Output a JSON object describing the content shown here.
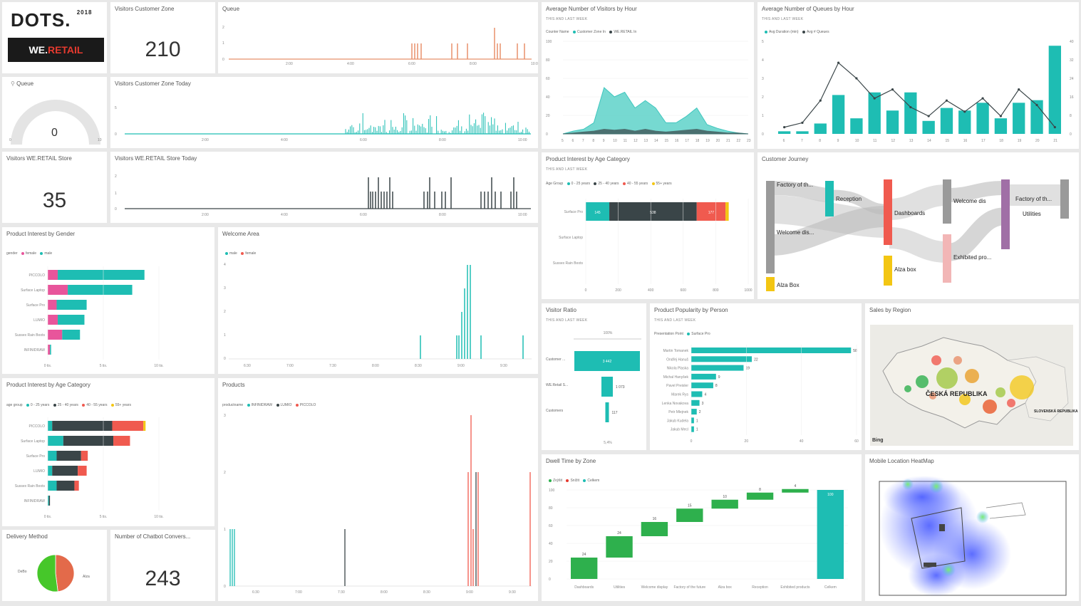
{
  "colors": {
    "teal": "#1ebdb3",
    "dark": "#3a4548",
    "red": "#f05a4f",
    "yellow": "#f3c613",
    "pink": "#e8559b",
    "orange": "#e8906a",
    "grey": "#9a9a9a",
    "purple": "#a06fa6",
    "lightpink": "#f2b6b6",
    "green": "#2eb04d"
  },
  "logo": {
    "brand": "DOTS.",
    "year": "2018",
    "store_we": "WE.",
    "store_retail": "RETAIL"
  },
  "tiles": {
    "visitors_customer_zone": {
      "title": "Visitors Customer Zone",
      "value": "210"
    },
    "queue_line": {
      "title": "Queue",
      "yticks": [
        "2",
        "1",
        "0"
      ],
      "xticks": [
        "2:00",
        "4:00",
        "6:00",
        "8:00",
        "10:00"
      ]
    },
    "avg_visitors_hour": {
      "title": "Average Number of Visitors by Hour",
      "subtitle": "THIS AND LAST WEEK",
      "legend_label": "Counter Name",
      "legend": [
        "Customer Zone In",
        "WE.RETAIL In"
      ]
    },
    "avg_queues_hour": {
      "title": "Average Number of Queues by Hour",
      "subtitle": "THIS AND LAST WEEK",
      "legend": [
        "Avg Duration (min)",
        "Avg # Queues"
      ]
    },
    "queue_gauge": {
      "title": "Queue",
      "value": "0",
      "min": "0",
      "max": "10"
    },
    "visitors_cz_today": {
      "title": "Visitors Customer Zone Today"
    },
    "visitors_wr_store": {
      "title": "Visitors WE.RETAIL Store",
      "value": "35"
    },
    "visitors_wr_today": {
      "title": "Visitors WE.RETAIL Store Today"
    },
    "interest_age_top": {
      "title": "Product Interest by Age Category",
      "subtitle": "THIS AND LAST WEEK",
      "legend_label": "Age Group",
      "legend": [
        "0 - 25 years",
        "25 - 40 years",
        "40 - 55 years",
        "55+ years"
      ]
    },
    "customer_journey": {
      "title": "Customer Journey"
    },
    "interest_gender": {
      "title": "Product Interest by Gender",
      "legend_label": "gender",
      "legend": [
        "female",
        "male"
      ]
    },
    "welcome_area": {
      "title": "Welcome Area",
      "legend": [
        "male",
        "female"
      ]
    },
    "visitor_ratio": {
      "title": "Visitor Ratio",
      "subtitle": "THIS AND LAST WEEK"
    },
    "popularity_person": {
      "title": "Product Popularity by Person",
      "subtitle": "THIS AND LAST WEEK",
      "legend_label": "Presentation Point",
      "legend": [
        "Surface Pro"
      ]
    },
    "sales_region": {
      "title": "Sales by Region",
      "country1": "ČESKÁ REPUBLIKA",
      "country2": "SLOVENSKÁ REPUBLIKA",
      "bing": "Bing"
    },
    "interest_age_bottom": {
      "title": "Product Interest by Age Category",
      "legend_label": "age group",
      "legend": [
        "0 - 25 years",
        "25 - 40 years",
        "40 - 55 years",
        "55+ years"
      ]
    },
    "products": {
      "title": "Products",
      "legend_label": "productname",
      "legend": [
        "INFINIDRAW",
        "LUMIO",
        "PICCOLO"
      ]
    },
    "dwell_time": {
      "title": "Dwell Time by Zone",
      "legend": [
        "Zvýšit",
        "Snížit",
        "Celkem"
      ]
    },
    "mobile_heatmap": {
      "title": "Mobile Location HeatMap"
    },
    "delivery_method": {
      "title": "Delivery Method",
      "labels": [
        "DeBo",
        "Alza"
      ]
    },
    "chatbot": {
      "title": "Number of Chatbot Convers...",
      "value": "243"
    }
  },
  "chart_data": [
    {
      "id": "avg-visitors",
      "type": "area",
      "x": [
        "5",
        "6",
        "7",
        "8",
        "9",
        "10",
        "11",
        "12",
        "13",
        "14",
        "15",
        "16",
        "17",
        "18",
        "19",
        "20",
        "21",
        "22",
        "23"
      ],
      "series": [
        {
          "name": "Customer Zone In",
          "values": [
            0,
            3,
            5,
            12,
            50,
            40,
            45,
            28,
            36,
            28,
            12,
            12,
            19,
            28,
            10,
            6,
            3,
            1,
            0
          ]
        },
        {
          "name": "WE.RETAIL In",
          "values": [
            0,
            1,
            2,
            3,
            5,
            4,
            5,
            3,
            5,
            3,
            2,
            3,
            4,
            5,
            3,
            2,
            1,
            1,
            0
          ]
        }
      ],
      "ylim": [
        0,
        100
      ],
      "yticks": [
        "100",
        "80",
        "60",
        "40",
        "20",
        "0"
      ]
    },
    {
      "id": "avg-queues",
      "type": "bar",
      "x": [
        "6",
        "7",
        "8",
        "9",
        "10",
        "11",
        "12",
        "13",
        "14",
        "15",
        "16",
        "17",
        "18",
        "19",
        "20",
        "21"
      ],
      "series": [
        {
          "name": "Avg Duration (min)",
          "values": [
            0.1,
            0.1,
            0.4,
            1.5,
            0.6,
            1.6,
            0.9,
            1.6,
            0.5,
            1.0,
            0.9,
            1.2,
            0.6,
            1.2,
            1.3,
            3.4
          ]
        },
        {
          "name": "Avg # Queues",
          "values": [
            0.3,
            0.5,
            1.5,
            3.2,
            2.5,
            1.6,
            2.0,
            1.2,
            0.8,
            1.5,
            1.0,
            1.6,
            0.8,
            2.0,
            1.3,
            0.3
          ]
        }
      ],
      "ylim": [
        0,
        5
      ]
    },
    {
      "id": "interest-age-top",
      "type": "bar",
      "categories": [
        "Surface Pro",
        "Surface Laptop",
        "Sussex Rain Boots"
      ],
      "series": [
        {
          "name": "0 - 25 years",
          "values": [
            145,
            0,
            0
          ]
        },
        {
          "name": "25 - 40 years",
          "values": [
            538,
            0,
            0
          ]
        },
        {
          "name": "40 - 55 years",
          "values": [
            177,
            0,
            0
          ]
        },
        {
          "name": "55+ years",
          "values": [
            20,
            0,
            0
          ]
        }
      ],
      "xticks": [
        "0",
        "200",
        "400",
        "600",
        "800",
        "1000"
      ]
    },
    {
      "id": "interest-gender",
      "type": "bar",
      "categories": [
        "PICCOLO",
        "Surface Laptop",
        "Surface Pro",
        "LUMIO",
        "Sussex Rain Boots",
        "INFINIDRAW"
      ],
      "series": [
        {
          "name": "female",
          "values": [
            0.9,
            1.8,
            0.8,
            0.9,
            1.3,
            0.2
          ]
        },
        {
          "name": "male",
          "values": [
            7.8,
            5.8,
            2.7,
            2.4,
            1.6,
            0.1
          ]
        }
      ],
      "xticks": [
        "0 tis.",
        "5 tis.",
        "10 tis."
      ]
    },
    {
      "id": "interest-age-bottom",
      "type": "bar",
      "categories": [
        "PICCOLO",
        "Surface Laptop",
        "Surface Pro",
        "LUMIO",
        "Sussex Rain Boots",
        "INFINIDRAW"
      ],
      "series": [
        {
          "name": "0 - 25 years",
          "values": [
            0.4,
            1.4,
            0.8,
            0.4,
            0.8,
            0.1
          ]
        },
        {
          "name": "25 - 40 years",
          "values": [
            5.4,
            4.5,
            2.2,
            2.3,
            1.6,
            0.1
          ]
        },
        {
          "name": "40 - 55 years",
          "values": [
            2.8,
            1.5,
            0.6,
            0.8,
            0.4,
            0
          ]
        },
        {
          "name": "55+ years",
          "values": [
            0.2,
            0,
            0,
            0,
            0,
            0
          ]
        }
      ],
      "xticks": [
        "0 tis.",
        "5 tis.",
        "10 tis."
      ]
    },
    {
      "id": "visitor-ratio",
      "type": "bar",
      "categories": [
        "Customer ...",
        "WE.Retail S...",
        "Customers"
      ],
      "values": [
        "3 442",
        "1 073",
        "117"
      ],
      "top": "100%",
      "bottom": "5,4%"
    },
    {
      "id": "popularity-person",
      "type": "bar",
      "categories": [
        "Martin Tomanek",
        "Ondřej Hanuš",
        "Nikola Plaska",
        "Michal Hanyšek",
        "Pavel Preisler",
        "Marek Rys",
        "Lenka Novakova",
        "Petr Mlejnek",
        "Jakub Kudela",
        "Jakub Mecl"
      ],
      "values": [
        58,
        22,
        19,
        9,
        8,
        4,
        3,
        2,
        1,
        1
      ],
      "xticks": [
        "0",
        "20",
        "40",
        "60"
      ]
    },
    {
      "id": "dwell-time",
      "type": "bar",
      "categories": [
        "Dashboards",
        "Utilities",
        "Welcome display",
        "Factory of the future",
        "Alza box",
        "Reception",
        "Exhibited products",
        "Celkem"
      ],
      "values": [
        24,
        24,
        16,
        15,
        10,
        8,
        4,
        100
      ],
      "labels": [
        "24",
        "24",
        "16",
        "15",
        "10",
        "8",
        "4",
        "100"
      ],
      "yticks": [
        "100",
        "80",
        "60",
        "40",
        "20",
        "0"
      ]
    },
    {
      "id": "delivery-method",
      "type": "pie",
      "categories": [
        "DeBo",
        "Alza"
      ],
      "values": [
        48,
        52
      ]
    }
  ],
  "xticks_time": [
    "2:00",
    "4:00",
    "6:00",
    "8:00",
    "10:00"
  ],
  "welcome_xticks": [
    "6:30",
    "7:00",
    "7:30",
    "8:00",
    "8:30",
    "9:00",
    "9:30"
  ],
  "products_xticks": [
    "6:30",
    "7:00",
    "7:30",
    "8:00",
    "8:30",
    "9:00",
    "9:30"
  ],
  "journey_labels": [
    "Factory of th...",
    "Welcome dis...",
    "Reception",
    "Dashboards",
    "Alza box",
    "Welcome dis",
    "Exhibited pro...",
    "Factory of th...",
    "Utilities",
    "Alza Box"
  ]
}
